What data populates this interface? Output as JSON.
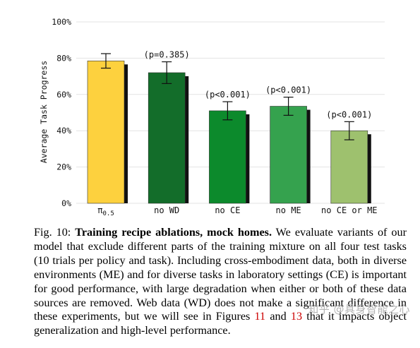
{
  "chart_data": {
    "type": "bar",
    "categories": [
      "π0.5",
      "no WD",
      "no CE",
      "no ME",
      "no CE or ME"
    ],
    "category_main": [
      "π",
      "no WD",
      "no CE",
      "no ME",
      "no CE or ME"
    ],
    "category_sub": [
      "0.5",
      "",
      "",
      "",
      ""
    ],
    "values": [
      78.5,
      72,
      51,
      53.5,
      40
    ],
    "errors": [
      4,
      6,
      5,
      5,
      5
    ],
    "annotations": [
      "",
      "(p=0.385)",
      "(p<0.001)",
      "(p<0.001)",
      "(p<0.001)"
    ],
    "colors": [
      "#FDD13E",
      "#136D2A",
      "#0C8A2C",
      "#35A24E",
      "#9EC16E"
    ],
    "ylabel": "Average Task Progress",
    "yticks": [
      0,
      20,
      40,
      60,
      80,
      100
    ],
    "ytick_labels": [
      "0%",
      "20%",
      "40%",
      "60%",
      "80%",
      "100%"
    ],
    "ylim": [
      0,
      100
    ],
    "grid": true
  },
  "caption": {
    "label": "Fig. 10: ",
    "title": "Training recipe ablations, mock homes.",
    "text_1": " We evaluate variants of our model that exclude different parts of the training mixture on all four test tasks (10 trials per policy and task). Including cross-embodiment data, both in diverse environments (ME) and for diverse tasks in laboratory settings (CE) is important for good performance, with large degradation when either or both of these data sources are removed. Web data (WD) does not make a significant difference in these experiments, but we will see in Figures ",
    "ref_1": "11",
    "text_2": " and ",
    "ref_2": "13",
    "text_3": " that it impacts object generalization and high-level performance."
  },
  "watermark": "知乎 @具身智能之心"
}
